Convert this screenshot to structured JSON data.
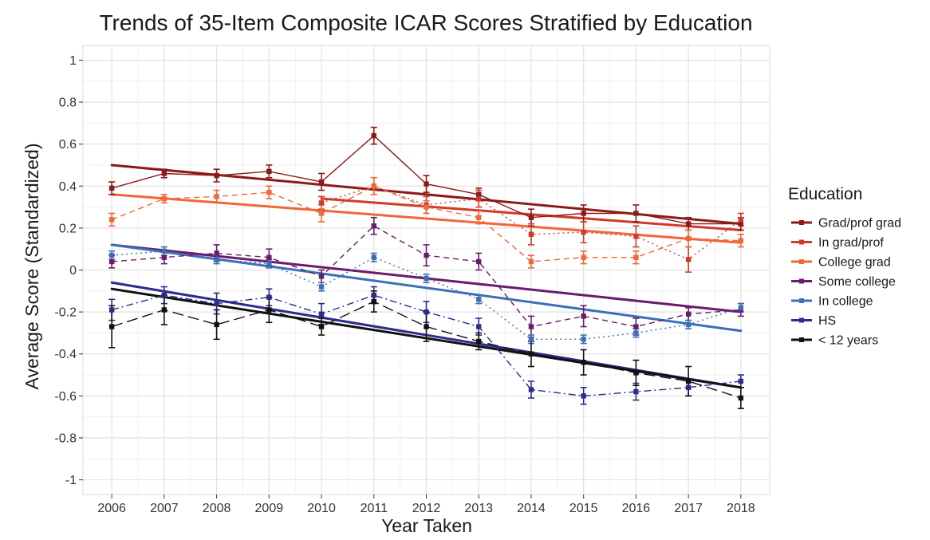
{
  "chart_data": {
    "type": "line",
    "title": "Trends of 35-Item Composite ICAR Scores Stratified by Education",
    "xlabel": "Year Taken",
    "ylabel": "Average Score (Standardized)",
    "x": [
      2006,
      2007,
      2008,
      2009,
      2010,
      2011,
      2012,
      2013,
      2014,
      2015,
      2016,
      2017,
      2018
    ],
    "ylim": [
      -1.07,
      1.07
    ],
    "yticks": [
      -1,
      -0.8,
      -0.6,
      -0.4,
      -0.2,
      0,
      0.2,
      0.4,
      0.6,
      0.8,
      1
    ],
    "ytick_labels": [
      "-1",
      "-0.8",
      "-0.6",
      "-0.4",
      "-0.2",
      "0",
      "0.2",
      "0.4",
      "0.6",
      "0.8",
      "1"
    ],
    "xtick_labels": [
      "2006",
      "2007",
      "2008",
      "2009",
      "2010",
      "2011",
      "2012",
      "2013",
      "2014",
      "2015",
      "2016",
      "2017",
      "2018"
    ],
    "grid": true,
    "legend": {
      "title": "Education",
      "position": "right"
    },
    "series": [
      {
        "name": "Grad/prof grad",
        "color": "#8b1a1a",
        "dash": "solid",
        "values": [
          0.39,
          0.46,
          0.45,
          0.47,
          0.42,
          0.64,
          0.41,
          0.36,
          0.25,
          0.27,
          0.27,
          0.22,
          0.22
        ],
        "errors": [
          0.03,
          0.02,
          0.03,
          0.03,
          0.04,
          0.04,
          0.04,
          0.03,
          0.04,
          0.04,
          0.04,
          0.03,
          0.03
        ],
        "trend": [
          0.5,
          0.22
        ]
      },
      {
        "name": "In grad/prof",
        "color": "#d03a2a",
        "dash": "dotted",
        "values": [
          null,
          null,
          null,
          null,
          0.32,
          0.4,
          0.31,
          0.34,
          0.17,
          0.18,
          0.16,
          0.05,
          0.24
        ],
        "errors": [
          null,
          null,
          null,
          null,
          0.03,
          0.04,
          0.04,
          0.04,
          0.05,
          0.05,
          0.05,
          0.06,
          0.03
        ],
        "trend": [
          0.34,
          0.19
        ],
        "trend_start": 2010
      },
      {
        "name": "College grad",
        "color": "#f0673a",
        "dash": "dashed",
        "values": [
          0.24,
          0.34,
          0.35,
          0.37,
          0.27,
          0.4,
          0.3,
          0.25,
          0.04,
          0.06,
          0.06,
          0.15,
          0.14
        ],
        "errors": [
          0.03,
          0.02,
          0.03,
          0.03,
          0.04,
          0.04,
          0.03,
          0.03,
          0.03,
          0.03,
          0.03,
          0.04,
          0.03
        ],
        "trend": [
          0.36,
          0.13
        ]
      },
      {
        "name": "Some college",
        "color": "#6a1b6b",
        "dash": "dashed",
        "values": [
          0.04,
          0.06,
          0.08,
          0.06,
          -0.03,
          0.21,
          0.07,
          0.04,
          -0.27,
          -0.22,
          -0.27,
          -0.21,
          -0.19
        ],
        "errors": [
          0.03,
          0.03,
          0.04,
          0.04,
          0.03,
          0.04,
          0.05,
          0.04,
          0.05,
          0.05,
          0.04,
          0.03,
          0.03
        ],
        "trend": [
          0.12,
          -0.2
        ]
      },
      {
        "name": "In college",
        "color": "#3c6fb6",
        "dash": "dotted",
        "values": [
          0.07,
          0.09,
          0.05,
          0.03,
          -0.08,
          0.06,
          -0.04,
          -0.14,
          -0.33,
          -0.33,
          -0.3,
          -0.26,
          -0.18
        ],
        "errors": [
          0.02,
          0.02,
          0.02,
          0.02,
          0.02,
          0.02,
          0.02,
          0.02,
          0.02,
          0.02,
          0.02,
          0.02,
          0.02
        ],
        "trend": [
          0.12,
          -0.29
        ]
      },
      {
        "name": "HS",
        "color": "#2b2c8c",
        "dash": "dashdot",
        "values": [
          -0.19,
          -0.12,
          -0.16,
          -0.13,
          -0.21,
          -0.12,
          -0.2,
          -0.27,
          -0.57,
          -0.6,
          -0.58,
          -0.56,
          -0.53
        ],
        "errors": [
          0.05,
          0.04,
          0.05,
          0.04,
          0.05,
          0.04,
          0.05,
          0.04,
          0.04,
          0.04,
          0.04,
          0.04,
          0.03
        ],
        "trend": [
          -0.06,
          -0.56
        ]
      },
      {
        "name": "< 12 years",
        "color": "#111111",
        "dash": "longdash",
        "values": [
          -0.27,
          -0.19,
          -0.26,
          -0.19,
          -0.27,
          -0.15,
          -0.27,
          -0.34,
          -0.4,
          -0.44,
          -0.49,
          -0.53,
          -0.61
        ],
        "errors": [
          0.1,
          0.07,
          0.07,
          0.06,
          0.04,
          0.05,
          0.07,
          0.04,
          0.06,
          0.06,
          0.06,
          0.07,
          0.05
        ],
        "trend": [
          -0.09,
          -0.56
        ]
      }
    ]
  }
}
